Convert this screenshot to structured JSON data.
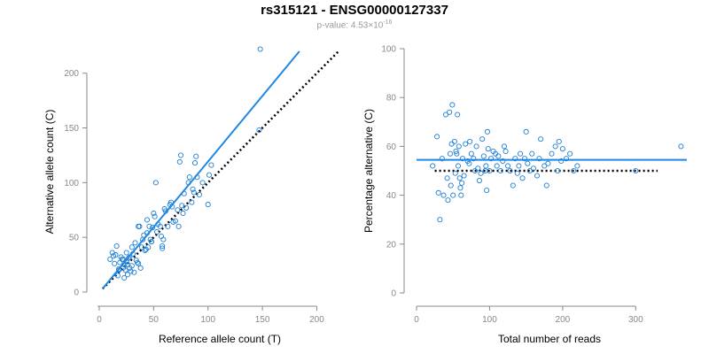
{
  "header": {
    "title": "rs315121 - ENSG00000127337",
    "pvalue_prefix": "p-value: 4.53×10",
    "pvalue_exponent": "-16"
  },
  "colors": {
    "points": "#1f7fd4",
    "fit_line": "#1f87e5",
    "reference_line": "#000000",
    "axis": "#888888"
  },
  "chart_data": [
    {
      "type": "scatter",
      "xlabel": "Reference allele count (T)",
      "ylabel": "Alternative allele count (C)",
      "xlim": [
        0,
        220
      ],
      "ylim": [
        0,
        220
      ],
      "xticks": [
        0,
        50,
        100,
        150,
        200
      ],
      "yticks": [
        0,
        50,
        100,
        150,
        200
      ],
      "fit_line": [
        [
          3,
          3
        ],
        [
          184,
          220
        ]
      ],
      "reference_line": [
        [
          3,
          3
        ],
        [
          220,
          220
        ]
      ],
      "points": [
        [
          148,
          222
        ],
        [
          147,
          148
        ],
        [
          10,
          30
        ],
        [
          12,
          36
        ],
        [
          13,
          33
        ],
        [
          14,
          26
        ],
        [
          15,
          34
        ],
        [
          16,
          42
        ],
        [
          17,
          15
        ],
        [
          18,
          21
        ],
        [
          19,
          27
        ],
        [
          20,
          32
        ],
        [
          21,
          30
        ],
        [
          22,
          22
        ],
        [
          23,
          13
        ],
        [
          23,
          25
        ],
        [
          24,
          20
        ],
        [
          25,
          36
        ],
        [
          25,
          28
        ],
        [
          26,
          16
        ],
        [
          27,
          31
        ],
        [
          28,
          22
        ],
        [
          29,
          19
        ],
        [
          30,
          24
        ],
        [
          30,
          41
        ],
        [
          31,
          35
        ],
        [
          32,
          18
        ],
        [
          33,
          45
        ],
        [
          34,
          29
        ],
        [
          35,
          27
        ],
        [
          36,
          26
        ],
        [
          37,
          60
        ],
        [
          38,
          22
        ],
        [
          39,
          41
        ],
        [
          40,
          48
        ],
        [
          41,
          52
        ],
        [
          42,
          38
        ],
        [
          43,
          39
        ],
        [
          44,
          54
        ],
        [
          44,
          66
        ],
        [
          45,
          41
        ],
        [
          46,
          60
        ],
        [
          47,
          48
        ],
        [
          48,
          46
        ],
        [
          49,
          59
        ],
        [
          50,
          72
        ],
        [
          51,
          69
        ],
        [
          52,
          100
        ],
        [
          53,
          55
        ],
        [
          54,
          62
        ],
        [
          56,
          60
        ],
        [
          57,
          51
        ],
        [
          58,
          40
        ],
        [
          59,
          48
        ],
        [
          60,
          76
        ],
        [
          61,
          74
        ],
        [
          63,
          60
        ],
        [
          65,
          80
        ],
        [
          66,
          82
        ],
        [
          67,
          78
        ],
        [
          68,
          64
        ],
        [
          70,
          65
        ],
        [
          72,
          75
        ],
        [
          73,
          60
        ],
        [
          74,
          119
        ],
        [
          75,
          125
        ],
        [
          76,
          79
        ],
        [
          77,
          72
        ],
        [
          78,
          90
        ],
        [
          80,
          77
        ],
        [
          82,
          100
        ],
        [
          83,
          105
        ],
        [
          85,
          82
        ],
        [
          86,
          94
        ],
        [
          87,
          91
        ],
        [
          88,
          118
        ],
        [
          89,
          124
        ],
        [
          90,
          105
        ],
        [
          92,
          89
        ],
        [
          95,
          100
        ],
        [
          100,
          80
        ],
        [
          101,
          107
        ],
        [
          103,
          116
        ],
        [
          58,
          42
        ],
        [
          36,
          60
        ],
        [
          48,
          46
        ],
        [
          28,
          32
        ],
        [
          22,
          30
        ],
        [
          18,
          20
        ],
        [
          26,
          25
        ]
      ]
    },
    {
      "type": "scatter",
      "xlabel": "Total number of reads",
      "ylabel": "Percentage alternative (C)",
      "xlim": [
        0,
        370
      ],
      "ylim": [
        0,
        100
      ],
      "xticks": [
        0,
        100,
        200,
        300
      ],
      "yticks": [
        0,
        20,
        40,
        60,
        80,
        100
      ],
      "fit_level": 54.5,
      "reference_level": 50,
      "reference_x": [
        25,
        330
      ],
      "points": [
        [
          22,
          52
        ],
        [
          28,
          64
        ],
        [
          30,
          41
        ],
        [
          32,
          30
        ],
        [
          35,
          55
        ],
        [
          37,
          40
        ],
        [
          40,
          73
        ],
        [
          42,
          47
        ],
        [
          43,
          38
        ],
        [
          45,
          74
        ],
        [
          46,
          57
        ],
        [
          47,
          44
        ],
        [
          48,
          61
        ],
        [
          49,
          77
        ],
        [
          50,
          40
        ],
        [
          52,
          62
        ],
        [
          53,
          49
        ],
        [
          54,
          58
        ],
        [
          55,
          57
        ],
        [
          56,
          73
        ],
        [
          57,
          52
        ],
        [
          58,
          60
        ],
        [
          59,
          47
        ],
        [
          60,
          43
        ],
        [
          61,
          40
        ],
        [
          62,
          45
        ],
        [
          63,
          55
        ],
        [
          65,
          48
        ],
        [
          67,
          61
        ],
        [
          70,
          54
        ],
        [
          72,
          53
        ],
        [
          73,
          62
        ],
        [
          75,
          57
        ],
        [
          78,
          55
        ],
        [
          80,
          50
        ],
        [
          82,
          60
        ],
        [
          84,
          51
        ],
        [
          86,
          46
        ],
        [
          88,
          49
        ],
        [
          90,
          63
        ],
        [
          92,
          56
        ],
        [
          94,
          50
        ],
        [
          95,
          52
        ],
        [
          96,
          42
        ],
        [
          97,
          66
        ],
        [
          98,
          59
        ],
        [
          100,
          50
        ],
        [
          102,
          55
        ],
        [
          105,
          58
        ],
        [
          108,
          57
        ],
        [
          110,
          52
        ],
        [
          112,
          56
        ],
        [
          115,
          50
        ],
        [
          118,
          54
        ],
        [
          120,
          60
        ],
        [
          122,
          58
        ],
        [
          125,
          52
        ],
        [
          128,
          50
        ],
        [
          132,
          44
        ],
        [
          135,
          55
        ],
        [
          138,
          49
        ],
        [
          140,
          52
        ],
        [
          142,
          57
        ],
        [
          145,
          47
        ],
        [
          148,
          55
        ],
        [
          150,
          66
        ],
        [
          152,
          53
        ],
        [
          155,
          50
        ],
        [
          158,
          57
        ],
        [
          160,
          51
        ],
        [
          165,
          48
        ],
        [
          168,
          55
        ],
        [
          170,
          63
        ],
        [
          175,
          52
        ],
        [
          178,
          44
        ],
        [
          180,
          53
        ],
        [
          185,
          57
        ],
        [
          190,
          60
        ],
        [
          193,
          50
        ],
        [
          195,
          62
        ],
        [
          198,
          54
        ],
        [
          200,
          59
        ],
        [
          205,
          55
        ],
        [
          210,
          57
        ],
        [
          215,
          50
        ],
        [
          220,
          52
        ],
        [
          300,
          50
        ],
        [
          362,
          60
        ]
      ]
    }
  ]
}
